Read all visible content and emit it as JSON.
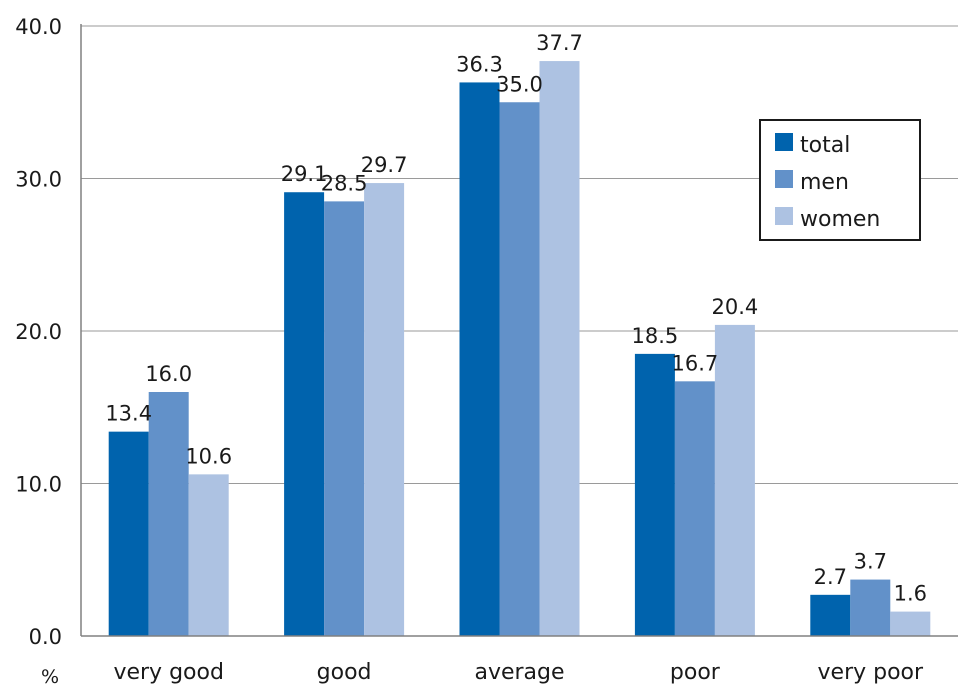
{
  "chart_data": {
    "type": "bar",
    "categories": [
      "very good",
      "good",
      "average",
      "poor",
      "very poor"
    ],
    "series": [
      {
        "name": "total",
        "color": "#0063ad",
        "values": [
          13.4,
          29.1,
          36.3,
          18.5,
          2.7
        ],
        "labels": [
          "13.4",
          "29.1",
          "36.3",
          "18.5",
          "2.7"
        ]
      },
      {
        "name": "men",
        "color": "#6291c9",
        "values": [
          16.0,
          28.5,
          35.0,
          16.7,
          3.7
        ],
        "labels": [
          "16.0",
          "28.5",
          "35.0",
          "16.7",
          "3.7"
        ]
      },
      {
        "name": "women",
        "color": "#adc2e2",
        "values": [
          10.6,
          29.7,
          37.7,
          20.4,
          1.6
        ],
        "labels": [
          "10.6",
          "29.7",
          "37.7",
          "20.4",
          "1.6"
        ]
      }
    ],
    "yticks": [
      "0.0",
      "10.0",
      "20.0",
      "30.0",
      "40.0"
    ],
    "ylim": [
      0,
      40
    ],
    "ylabel": "%",
    "grid": true,
    "legend": "top-right"
  }
}
